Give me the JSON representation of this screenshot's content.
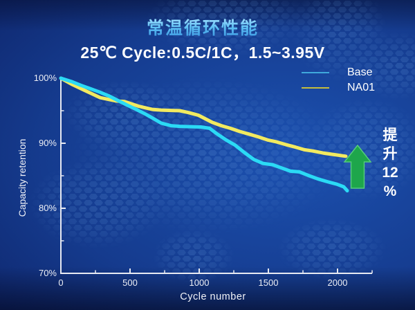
{
  "title": "常温循环性能",
  "subtitle": "25℃ Cycle:0.5C/1C，1.5~3.95V",
  "legend": {
    "items": [
      {
        "label": "Base",
        "swatch_color": "#3fa9dc"
      },
      {
        "label": "NA01",
        "swatch_color": "#c6be3c"
      }
    ]
  },
  "annotation": {
    "lines": [
      "提",
      "升",
      "12",
      "%"
    ],
    "arrow_color": "#1ea64b",
    "arrow_edge_color": "#55cc7d"
  },
  "colors": {
    "axis": "#e8eaf2",
    "background_center": "#1c51b0",
    "background_edge": "#081034",
    "hex_pattern": "#6fa3e8",
    "title_text": "#55bdf2"
  },
  "chart_data": {
    "type": "line",
    "title": "常温循环性能",
    "subtitle": "25℃ Cycle:0.5C/1C，1.5~3.95V",
    "xlabel": "Cycle number",
    "ylabel": "Capacity retention",
    "xlim": [
      0,
      2250
    ],
    "ylim": [
      70,
      100
    ],
    "grid": false,
    "legend_position": "top-right",
    "x_ticks_major": [
      {
        "value": 0,
        "label": "0"
      },
      {
        "value": 500,
        "label": "500"
      },
      {
        "value": 1000,
        "label": "1000"
      },
      {
        "value": 1500,
        "label": "1500"
      },
      {
        "value": 2000,
        "label": "2000"
      }
    ],
    "x_ticks_minor": [
      250,
      750,
      1250,
      1750,
      2250
    ],
    "y_ticks_major": [
      {
        "value": 100,
        "label": "100%"
      },
      {
        "value": 90,
        "label": "90%"
      },
      {
        "value": 80,
        "label": "80%"
      },
      {
        "value": 70,
        "label": "70%"
      }
    ],
    "y_ticks_minor": [
      95,
      85,
      75
    ],
    "series": [
      {
        "name": "NA01",
        "color": "#f2ea60",
        "points": [
          [
            0,
            100
          ],
          [
            85,
            99.0
          ],
          [
            185,
            98.0
          ],
          [
            285,
            97.0
          ],
          [
            400,
            96.5
          ],
          [
            460,
            96.4
          ],
          [
            560,
            95.7
          ],
          [
            660,
            95.2
          ],
          [
            725,
            95.1
          ],
          [
            860,
            95.0
          ],
          [
            925,
            94.7
          ],
          [
            995,
            94.3
          ],
          [
            1095,
            93.2
          ],
          [
            1160,
            92.7
          ],
          [
            1225,
            92.3
          ],
          [
            1295,
            91.8
          ],
          [
            1360,
            91.4
          ],
          [
            1425,
            91.0
          ],
          [
            1495,
            90.5
          ],
          [
            1560,
            90.2
          ],
          [
            1625,
            89.8
          ],
          [
            1695,
            89.4
          ],
          [
            1760,
            89.0
          ],
          [
            1825,
            88.8
          ],
          [
            1895,
            88.5
          ],
          [
            1960,
            88.3
          ],
          [
            2060,
            88.0
          ]
        ]
      },
      {
        "name": "Base",
        "color": "#2bdaf5",
        "points": [
          [
            0,
            100
          ],
          [
            75,
            99.5
          ],
          [
            145,
            98.9
          ],
          [
            210,
            98.4
          ],
          [
            275,
            97.9
          ],
          [
            345,
            97.3
          ],
          [
            410,
            96.6
          ],
          [
            475,
            95.9
          ],
          [
            545,
            95.2
          ],
          [
            610,
            94.5
          ],
          [
            660,
            93.9
          ],
          [
            725,
            93.1
          ],
          [
            795,
            92.7
          ],
          [
            860,
            92.6
          ],
          [
            1010,
            92.5
          ],
          [
            1075,
            92.3
          ],
          [
            1125,
            91.5
          ],
          [
            1195,
            90.5
          ],
          [
            1260,
            89.7
          ],
          [
            1325,
            88.6
          ],
          [
            1395,
            87.5
          ],
          [
            1460,
            86.9
          ],
          [
            1530,
            86.7
          ],
          [
            1595,
            86.2
          ],
          [
            1660,
            85.7
          ],
          [
            1725,
            85.6
          ],
          [
            1795,
            85.0
          ],
          [
            1860,
            84.5
          ],
          [
            1925,
            84.1
          ],
          [
            1995,
            83.7
          ],
          [
            2045,
            83.3
          ],
          [
            2070,
            82.7
          ]
        ]
      }
    ]
  }
}
